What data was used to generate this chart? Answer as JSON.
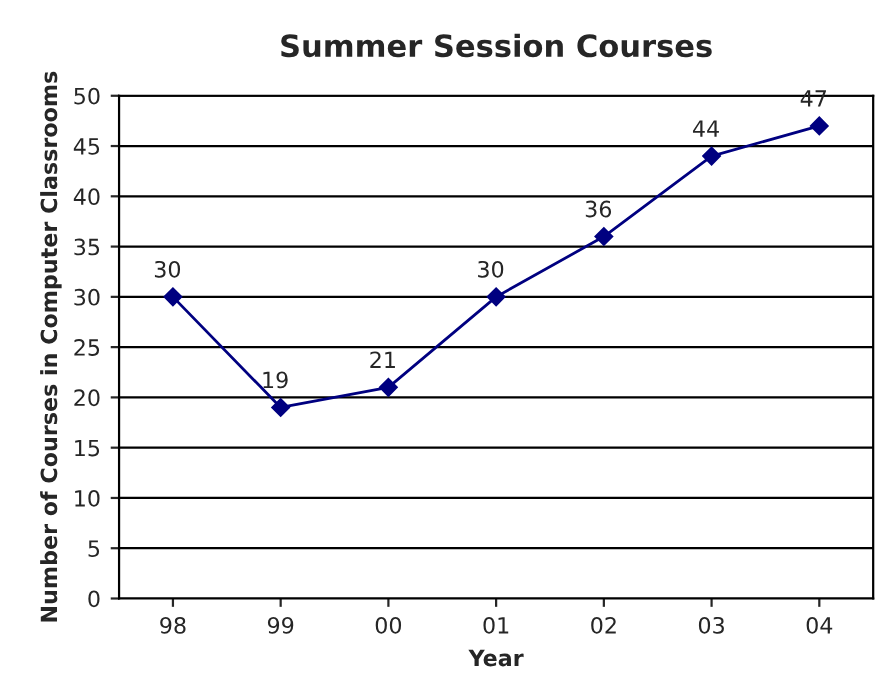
{
  "chart_data": {
    "type": "line",
    "title": "Summer Session Courses",
    "xlabel": "Year",
    "ylabel": "Number of Courses in Computer Classrooms",
    "categories": [
      "98",
      "99",
      "00",
      "01",
      "02",
      "03",
      "04"
    ],
    "series": [
      {
        "color": "#000080",
        "values": [
          30,
          19,
          21,
          30,
          36,
          44,
          47
        ]
      }
    ],
    "ylim": [
      0,
      50
    ],
    "yticks": [
      0,
      5,
      10,
      15,
      20,
      25,
      30,
      35,
      40,
      45,
      50
    ],
    "grid": "y",
    "marker": "diamond",
    "line_style": "solid",
    "data_labels": true,
    "legend": false
  }
}
